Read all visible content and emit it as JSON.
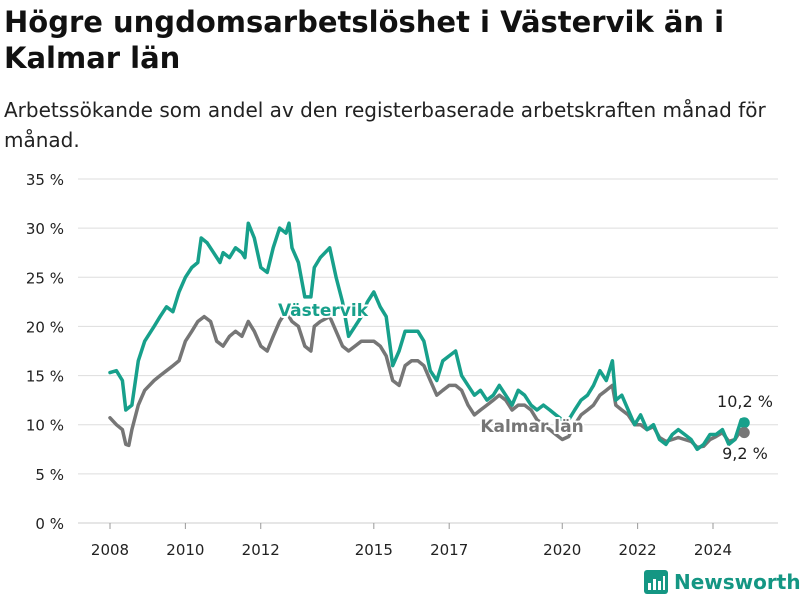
{
  "title": "Högre ungdomsarbetslöshet i Västervik än i Kalmar län",
  "subtitle": "Arbetssökande som andel av den registerbaserade arbetskraften månad för månad.",
  "brand": "Newsworthy",
  "colors": {
    "vastervik": "#17a08b",
    "kalmar": "#767676",
    "grid": "#dddddd",
    "text": "#222222",
    "brand": "#149683"
  },
  "chart_data": {
    "type": "line",
    "ylim": [
      0,
      35
    ],
    "y_ticks": [
      0,
      5,
      10,
      15,
      20,
      25,
      30,
      35
    ],
    "y_tick_labels": [
      "0 %",
      "5 %",
      "10 %",
      "15 %",
      "20 %",
      "25 %",
      "30 %",
      "35 %"
    ],
    "x_ticks": [
      2008,
      2010,
      2012,
      2015,
      2017,
      2020,
      2022,
      2024
    ],
    "x_tick_labels": [
      "2008",
      "2010",
      "2012",
      "2015",
      "2017",
      "2020",
      "2022",
      "2024"
    ],
    "series": [
      {
        "name": "Västervik",
        "color": "#17a08b",
        "end_label": "10,2 %",
        "points": [
          [
            2008.0,
            15.3
          ],
          [
            2008.17,
            15.5
          ],
          [
            2008.33,
            14.5
          ],
          [
            2008.42,
            11.5
          ],
          [
            2008.58,
            12.0
          ],
          [
            2008.75,
            16.5
          ],
          [
            2008.92,
            18.5
          ],
          [
            2009.17,
            20.0
          ],
          [
            2009.33,
            21.0
          ],
          [
            2009.5,
            22.0
          ],
          [
            2009.67,
            21.5
          ],
          [
            2009.83,
            23.5
          ],
          [
            2010.0,
            25.0
          ],
          [
            2010.17,
            26.0
          ],
          [
            2010.33,
            26.5
          ],
          [
            2010.42,
            29.0
          ],
          [
            2010.58,
            28.5
          ],
          [
            2010.75,
            27.5
          ],
          [
            2010.92,
            26.5
          ],
          [
            2011.0,
            27.5
          ],
          [
            2011.17,
            27.0
          ],
          [
            2011.33,
            28.0
          ],
          [
            2011.5,
            27.5
          ],
          [
            2011.58,
            27.0
          ],
          [
            2011.67,
            30.5
          ],
          [
            2011.83,
            29.0
          ],
          [
            2012.0,
            26.0
          ],
          [
            2012.17,
            25.5
          ],
          [
            2012.33,
            28.0
          ],
          [
            2012.5,
            30.0
          ],
          [
            2012.67,
            29.5
          ],
          [
            2012.75,
            30.5
          ],
          [
            2012.83,
            28.0
          ],
          [
            2013.0,
            26.5
          ],
          [
            2013.17,
            23.0
          ],
          [
            2013.33,
            23.0
          ],
          [
            2013.42,
            26.0
          ],
          [
            2013.58,
            27.0
          ],
          [
            2013.83,
            28.0
          ],
          [
            2014.0,
            25.0
          ],
          [
            2014.17,
            22.5
          ],
          [
            2014.33,
            19.0
          ],
          [
            2014.5,
            20.0
          ],
          [
            2014.67,
            21.0
          ],
          [
            2014.83,
            22.5
          ],
          [
            2015.0,
            23.5
          ],
          [
            2015.17,
            22.0
          ],
          [
            2015.33,
            21.0
          ],
          [
            2015.5,
            16.0
          ],
          [
            2015.67,
            17.5
          ],
          [
            2015.83,
            19.5
          ],
          [
            2016.0,
            19.5
          ],
          [
            2016.17,
            19.5
          ],
          [
            2016.33,
            18.5
          ],
          [
            2016.5,
            15.5
          ],
          [
            2016.67,
            14.5
          ],
          [
            2016.83,
            16.5
          ],
          [
            2017.0,
            17.0
          ],
          [
            2017.17,
            17.5
          ],
          [
            2017.33,
            15.0
          ],
          [
            2017.5,
            14.0
          ],
          [
            2017.67,
            13.0
          ],
          [
            2017.83,
            13.5
          ],
          [
            2018.0,
            12.5
          ],
          [
            2018.17,
            13.0
          ],
          [
            2018.33,
            14.0
          ],
          [
            2018.5,
            13.0
          ],
          [
            2018.67,
            12.0
          ],
          [
            2018.83,
            13.5
          ],
          [
            2019.0,
            13.0
          ],
          [
            2019.17,
            12.0
          ],
          [
            2019.33,
            11.5
          ],
          [
            2019.5,
            12.0
          ],
          [
            2019.67,
            11.5
          ],
          [
            2019.83,
            11.0
          ],
          [
            2020.0,
            10.5
          ],
          [
            2020.17,
            10.5
          ],
          [
            2020.33,
            11.5
          ],
          [
            2020.5,
            12.5
          ],
          [
            2020.67,
            13.0
          ],
          [
            2020.83,
            14.0
          ],
          [
            2021.0,
            15.5
          ],
          [
            2021.17,
            14.5
          ],
          [
            2021.33,
            16.5
          ],
          [
            2021.42,
            12.5
          ],
          [
            2021.58,
            13.0
          ],
          [
            2021.75,
            11.5
          ],
          [
            2021.92,
            10.0
          ],
          [
            2022.08,
            11.0
          ],
          [
            2022.25,
            9.5
          ],
          [
            2022.42,
            10.0
          ],
          [
            2022.58,
            8.5
          ],
          [
            2022.75,
            8.0
          ],
          [
            2022.92,
            9.0
          ],
          [
            2023.08,
            9.5
          ],
          [
            2023.25,
            9.0
          ],
          [
            2023.42,
            8.5
          ],
          [
            2023.58,
            7.5
          ],
          [
            2023.75,
            8.0
          ],
          [
            2023.92,
            9.0
          ],
          [
            2024.08,
            9.0
          ],
          [
            2024.25,
            9.5
          ],
          [
            2024.42,
            8.0
          ],
          [
            2024.58,
            8.5
          ],
          [
            2024.75,
            10.5
          ],
          [
            2024.83,
            10.2
          ]
        ]
      },
      {
        "name": "Kalmar län",
        "color": "#767676",
        "end_label": "9,2 %",
        "points": [
          [
            2008.0,
            10.7
          ],
          [
            2008.17,
            10.0
          ],
          [
            2008.33,
            9.5
          ],
          [
            2008.42,
            8.0
          ],
          [
            2008.5,
            7.9
          ],
          [
            2008.58,
            9.5
          ],
          [
            2008.75,
            12.0
          ],
          [
            2008.92,
            13.5
          ],
          [
            2009.17,
            14.5
          ],
          [
            2009.33,
            15.0
          ],
          [
            2009.5,
            15.5
          ],
          [
            2009.67,
            16.0
          ],
          [
            2009.83,
            16.5
          ],
          [
            2010.0,
            18.5
          ],
          [
            2010.17,
            19.5
          ],
          [
            2010.33,
            20.5
          ],
          [
            2010.5,
            21.0
          ],
          [
            2010.67,
            20.5
          ],
          [
            2010.83,
            18.5
          ],
          [
            2011.0,
            18.0
          ],
          [
            2011.17,
            19.0
          ],
          [
            2011.33,
            19.5
          ],
          [
            2011.5,
            19.0
          ],
          [
            2011.67,
            20.5
          ],
          [
            2011.83,
            19.5
          ],
          [
            2012.0,
            18.0
          ],
          [
            2012.17,
            17.5
          ],
          [
            2012.33,
            19.0
          ],
          [
            2012.5,
            20.5
          ],
          [
            2012.67,
            21.5
          ],
          [
            2012.83,
            20.5
          ],
          [
            2013.0,
            20.0
          ],
          [
            2013.17,
            18.0
          ],
          [
            2013.33,
            17.5
          ],
          [
            2013.42,
            20.0
          ],
          [
            2013.58,
            20.5
          ],
          [
            2013.83,
            21.0
          ],
          [
            2014.0,
            19.5
          ],
          [
            2014.17,
            18.0
          ],
          [
            2014.33,
            17.5
          ],
          [
            2014.5,
            18.0
          ],
          [
            2014.67,
            18.5
          ],
          [
            2014.83,
            18.5
          ],
          [
            2015.0,
            18.5
          ],
          [
            2015.17,
            18.0
          ],
          [
            2015.33,
            17.0
          ],
          [
            2015.5,
            14.5
          ],
          [
            2015.67,
            14.0
          ],
          [
            2015.83,
            16.0
          ],
          [
            2016.0,
            16.5
          ],
          [
            2016.17,
            16.5
          ],
          [
            2016.33,
            16.0
          ],
          [
            2016.5,
            14.5
          ],
          [
            2016.67,
            13.0
          ],
          [
            2016.83,
            13.5
          ],
          [
            2017.0,
            14.0
          ],
          [
            2017.17,
            14.0
          ],
          [
            2017.33,
            13.5
          ],
          [
            2017.5,
            12.0
          ],
          [
            2017.67,
            11.0
          ],
          [
            2017.83,
            11.5
          ],
          [
            2018.0,
            12.0
          ],
          [
            2018.17,
            12.5
          ],
          [
            2018.33,
            13.0
          ],
          [
            2018.5,
            12.5
          ],
          [
            2018.67,
            11.5
          ],
          [
            2018.83,
            12.0
          ],
          [
            2019.0,
            12.0
          ],
          [
            2019.17,
            11.5
          ],
          [
            2019.33,
            10.5
          ],
          [
            2019.5,
            10.0
          ],
          [
            2019.67,
            9.5
          ],
          [
            2019.83,
            9.0
          ],
          [
            2020.0,
            8.5
          ],
          [
            2020.17,
            8.8
          ],
          [
            2020.33,
            10.0
          ],
          [
            2020.5,
            11.0
          ],
          [
            2020.67,
            11.5
          ],
          [
            2020.83,
            12.0
          ],
          [
            2021.0,
            13.0
          ],
          [
            2021.17,
            13.5
          ],
          [
            2021.33,
            14.0
          ],
          [
            2021.42,
            12.0
          ],
          [
            2021.58,
            11.5
          ],
          [
            2021.75,
            11.0
          ],
          [
            2021.92,
            10.0
          ],
          [
            2022.08,
            10.0
          ],
          [
            2022.25,
            9.5
          ],
          [
            2022.42,
            9.8
          ],
          [
            2022.58,
            8.7
          ],
          [
            2022.75,
            8.3
          ],
          [
            2022.92,
            8.5
          ],
          [
            2023.08,
            8.7
          ],
          [
            2023.25,
            8.5
          ],
          [
            2023.42,
            8.3
          ],
          [
            2023.58,
            7.7
          ],
          [
            2023.75,
            7.8
          ],
          [
            2023.92,
            8.5
          ],
          [
            2024.08,
            8.8
          ],
          [
            2024.25,
            9.2
          ],
          [
            2024.42,
            8.3
          ],
          [
            2024.58,
            8.5
          ],
          [
            2024.75,
            9.5
          ],
          [
            2024.83,
            9.2
          ]
        ]
      }
    ]
  }
}
